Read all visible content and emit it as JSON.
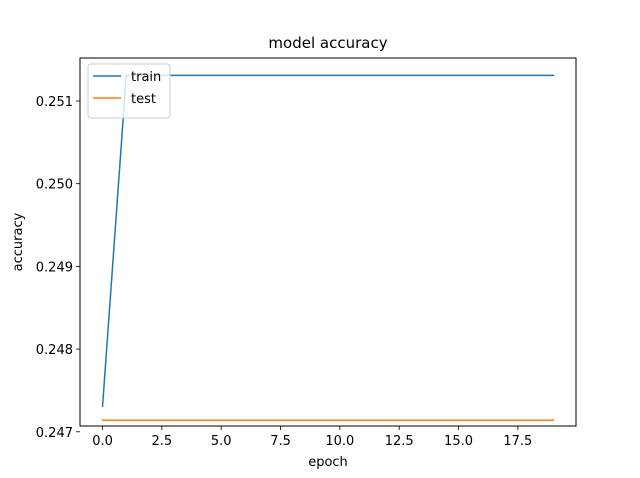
{
  "chart_data": {
    "type": "line",
    "title": "model accuracy",
    "xlabel": "epoch",
    "ylabel": "accuracy",
    "xlim": [
      -0.95,
      19.95
    ],
    "ylim": [
      0.24707,
      0.25152
    ],
    "xticks": [
      0.0,
      2.5,
      5.0,
      7.5,
      10.0,
      12.5,
      15.0,
      17.5
    ],
    "xtick_labels": [
      "0.0",
      "2.5",
      "5.0",
      "7.5",
      "10.0",
      "12.5",
      "15.0",
      "17.5"
    ],
    "yticks": [
      0.247,
      0.248,
      0.249,
      0.25,
      0.251
    ],
    "ytick_labels": [
      "0.247",
      "0.248",
      "0.249",
      "0.250",
      "0.251"
    ],
    "grid": false,
    "legend_position": "upper left",
    "x": [
      0,
      1,
      2,
      3,
      4,
      5,
      6,
      7,
      8,
      9,
      10,
      11,
      12,
      13,
      14,
      15,
      16,
      17,
      18,
      19
    ],
    "series": [
      {
        "name": "train",
        "color": "#1f77b4",
        "values": [
          0.24731,
          0.25131,
          0.25131,
          0.25131,
          0.25131,
          0.25131,
          0.25131,
          0.25131,
          0.25131,
          0.25131,
          0.25131,
          0.25131,
          0.25131,
          0.25131,
          0.25131,
          0.25131,
          0.25131,
          0.25131,
          0.25131,
          0.25131
        ]
      },
      {
        "name": "test",
        "color": "#ff7f0e",
        "values": [
          0.24714,
          0.24714,
          0.24714,
          0.24714,
          0.24714,
          0.24714,
          0.24714,
          0.24714,
          0.24714,
          0.24714,
          0.24714,
          0.24714,
          0.24714,
          0.24714,
          0.24714,
          0.24714,
          0.24714,
          0.24714,
          0.24714,
          0.24714
        ]
      }
    ]
  }
}
